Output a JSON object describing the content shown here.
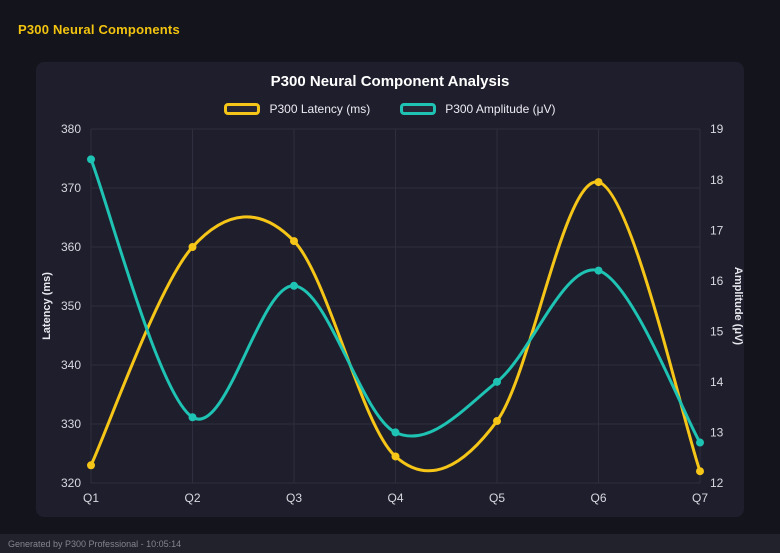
{
  "header": {
    "title": "P300 Neural Components"
  },
  "footer": {
    "text": "Generated by P300 Professional - 10:05:14"
  },
  "chart": {
    "title": "P300 Neural Component Analysis"
  },
  "colors": {
    "page_bg": "#14141c",
    "panel_bg": "#1e1e2c",
    "grid": "#2e2e3e",
    "tick_text": "#d8d8e0",
    "latency": "#f5c518",
    "amplitude": "#1fc3b3"
  },
  "chart_data": {
    "type": "line",
    "title": "P300 Neural Component Analysis",
    "categories": [
      "Q1",
      "Q2",
      "Q3",
      "Q4",
      "Q5",
      "Q6",
      "Q7"
    ],
    "series": [
      {
        "name": "P300 Latency (ms)",
        "axis": "left",
        "color": "#f5c518",
        "values": [
          323,
          360,
          361,
          324.5,
          330.5,
          371,
          322
        ]
      },
      {
        "name": "P300 Amplitude (μV)",
        "axis": "right",
        "color": "#1fc3b3",
        "values": [
          18.4,
          13.3,
          15.9,
          13.0,
          14.0,
          16.2,
          12.8
        ]
      }
    ],
    "left_axis": {
      "label": "Latency (ms)",
      "min": 320,
      "max": 380,
      "step": 10
    },
    "right_axis": {
      "label": "Amplitude (μV)",
      "min": 12,
      "max": 19,
      "step": 1
    },
    "grid": true,
    "legend_position": "top",
    "line_style": "smooth-spline",
    "point_markers": true
  }
}
